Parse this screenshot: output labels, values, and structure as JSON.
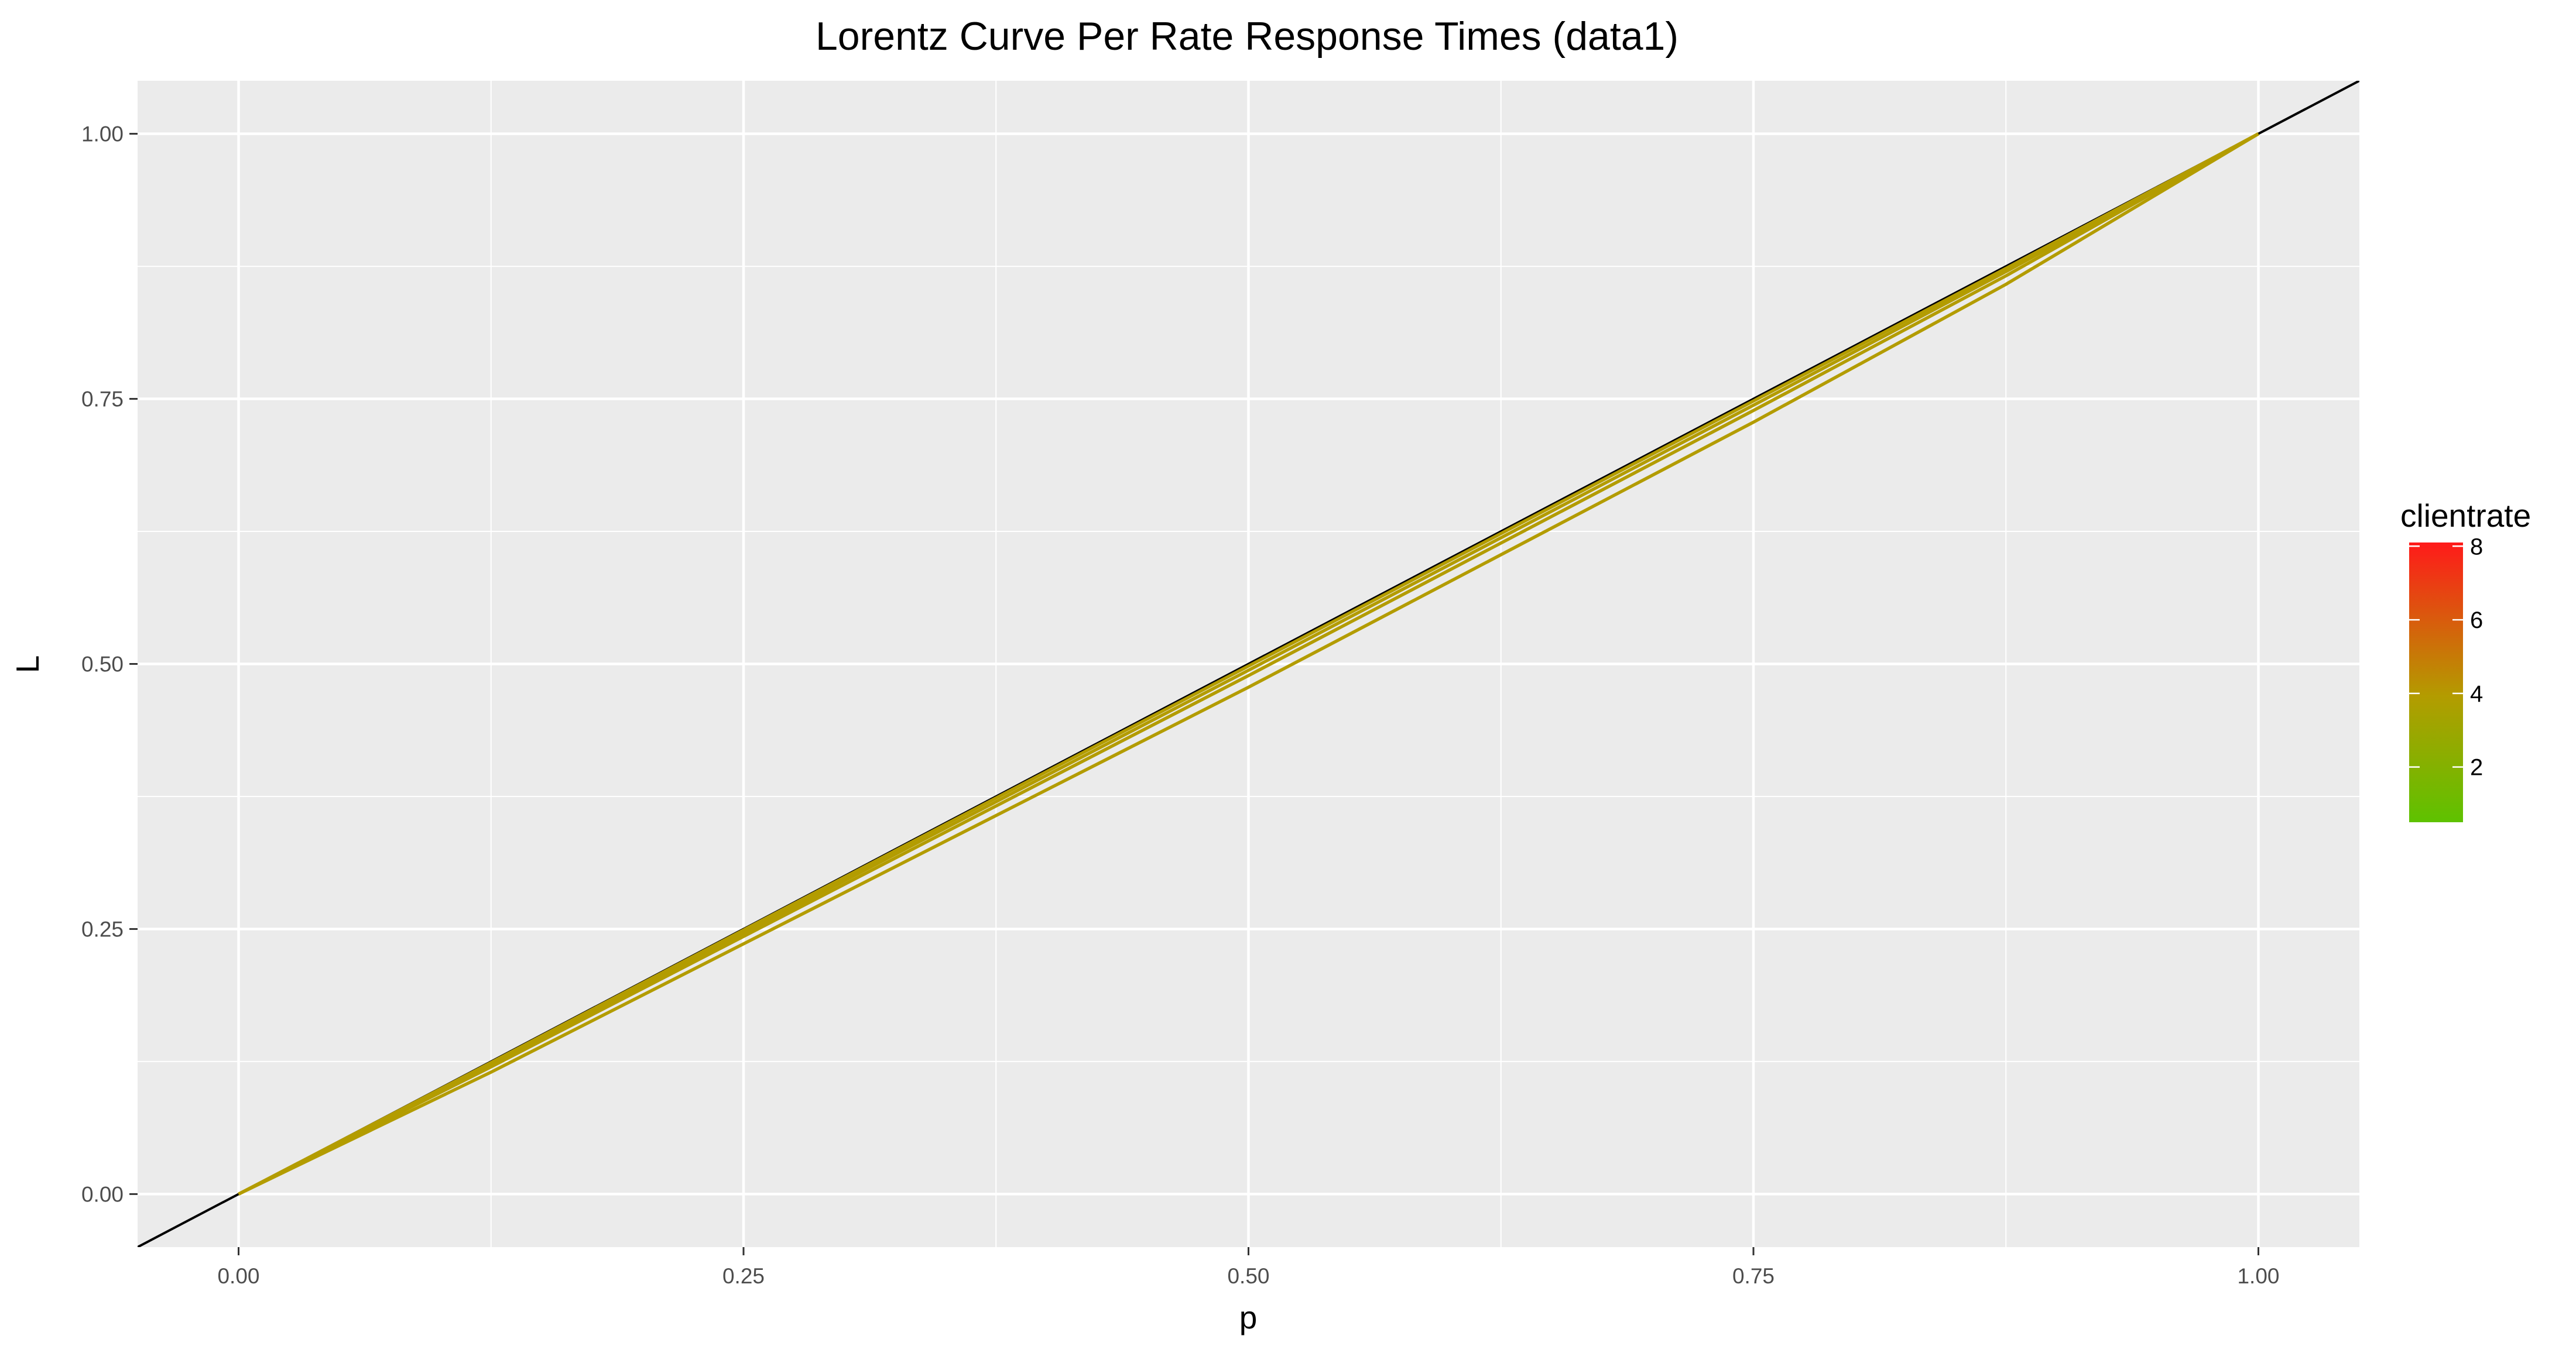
{
  "chart_data": {
    "type": "line",
    "title": "Lorentz Curve Per Rate Response Times (data1)",
    "xlabel": "p",
    "ylabel": "L",
    "xlim": [
      -0.05,
      1.05
    ],
    "ylim": [
      -0.05,
      1.05
    ],
    "x_ticks": [
      0.0,
      0.25,
      0.5,
      0.75,
      1.0
    ],
    "x_tick_labels": [
      "0.00",
      "0.25",
      "0.50",
      "0.75",
      "1.00"
    ],
    "y_ticks": [
      0.0,
      0.25,
      0.5,
      0.75,
      1.0
    ],
    "y_tick_labels": [
      "0.00",
      "0.25",
      "0.50",
      "0.75",
      "1.00"
    ],
    "grid": true,
    "background": "#ebebeb",
    "reference_line": {
      "x": [
        -0.05,
        1.05
      ],
      "y": [
        -0.05,
        1.05
      ],
      "color": "#000000"
    },
    "series": [
      {
        "color": "#b39c00",
        "x": [
          0.0,
          0.125,
          0.25,
          0.5,
          0.75,
          0.875,
          1.0
        ],
        "y": [
          0.0,
          0.124,
          0.249,
          0.498,
          0.748,
          0.873,
          1.0
        ]
      },
      {
        "color": "#b39c00",
        "x": [
          0.0,
          0.125,
          0.25,
          0.5,
          0.75,
          0.875,
          1.0
        ],
        "y": [
          0.0,
          0.122,
          0.246,
          0.494,
          0.744,
          0.87,
          1.0
        ]
      },
      {
        "color": "#b39c00",
        "x": [
          0.0,
          0.125,
          0.25,
          0.5,
          0.75,
          0.875,
          1.0
        ],
        "y": [
          0.0,
          0.12,
          0.243,
          0.489,
          0.739,
          0.866,
          1.0
        ]
      },
      {
        "color": "#b39c00",
        "x": [
          0.0,
          0.125,
          0.25,
          0.5,
          0.75,
          0.875,
          1.0
        ],
        "y": [
          0.0,
          0.115,
          0.236,
          0.478,
          0.728,
          0.858,
          1.0
        ]
      }
    ],
    "legend": {
      "title": "clientrate",
      "type": "colorbar",
      "range": [
        0.5,
        8.1
      ],
      "ticks": [
        2,
        4,
        6,
        8
      ],
      "tick_labels": [
        "2",
        "4",
        "6",
        "8"
      ],
      "low_color": "#5ec200",
      "mid_color": "#b39c00",
      "high_color": "#ff1a1a",
      "placement": "right"
    }
  }
}
